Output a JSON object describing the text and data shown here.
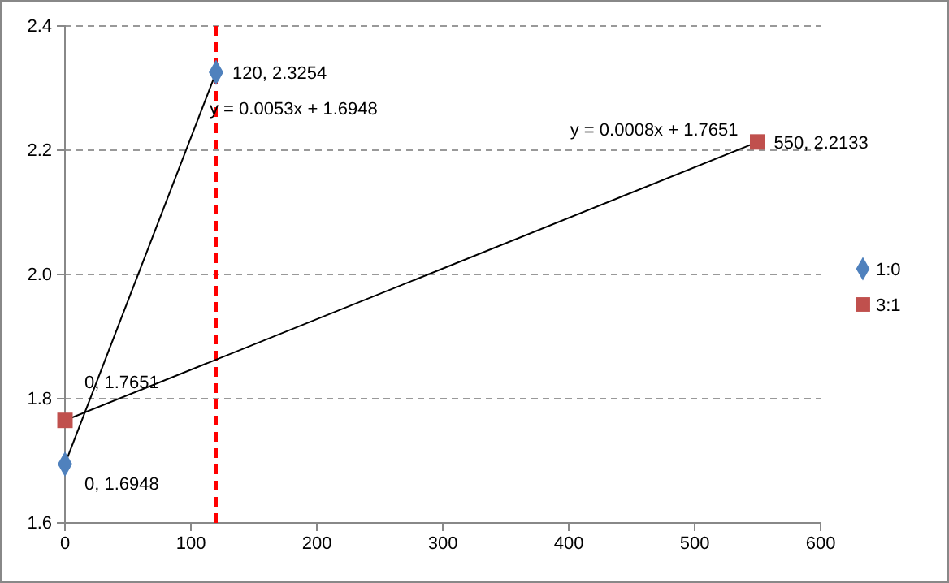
{
  "chart_data": {
    "type": "scatter",
    "xlim": [
      0,
      600
    ],
    "xticks": [
      0,
      100,
      200,
      300,
      400,
      500,
      600
    ],
    "ylim": [
      1.6,
      2.4
    ],
    "yticks": [
      1.6,
      1.8,
      {
        "value": 2,
        "label": "2.0"
      },
      2.2,
      2.4
    ],
    "grid": "y",
    "legend": "right",
    "series": [
      {
        "type": "line",
        "color": "#000000",
        "x": [
          0,
          120
        ],
        "values": [
          1.6948,
          2.3254
        ],
        "marker": "none"
      },
      {
        "type": "line",
        "color": "#000000",
        "x": [
          0,
          550
        ],
        "values": [
          1.7651,
          2.2133
        ],
        "marker": "none"
      },
      {
        "name": "1:0",
        "color": "#4f81bd",
        "marker": "diamond",
        "x": [
          0,
          120
        ],
        "values": [
          1.6948,
          2.3254
        ],
        "value_labels": [
          "0, 1.6948",
          "120, 2.3254"
        ]
      },
      {
        "name": "3:1",
        "color": "#c0504d",
        "marker": "square",
        "x": [
          0,
          550
        ],
        "values": [
          1.7651,
          2.2133
        ],
        "value_labels": [
          "0, 1.7651",
          "550, 2.2133"
        ]
      }
    ],
    "ref_lines": [
      {
        "axis": "x",
        "value": 120,
        "color": "#ff0000",
        "line_style": "dashed"
      }
    ],
    "annotations": [
      "y = 0.0053x + 1.6948",
      "y = 0.0008x + 1.7651"
    ]
  }
}
